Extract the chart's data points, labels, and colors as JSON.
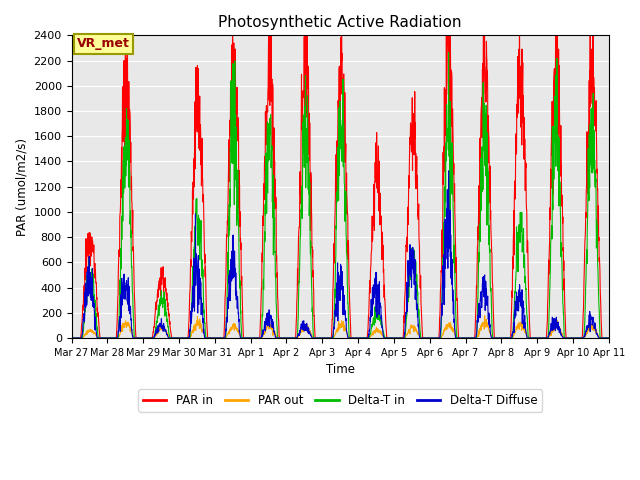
{
  "title": "Photosynthetic Active Radiation",
  "ylabel": "PAR (umol/m2/s)",
  "xlabel": "Time",
  "ylim": [
    0,
    2400
  ],
  "bg_color": "#e8e8e8",
  "legend_labels": [
    "PAR in",
    "PAR out",
    "Delta-T in",
    "Delta-T Diffuse"
  ],
  "legend_colors": [
    "#ff0000",
    "#ffa500",
    "#00bb00",
    "#0000cc"
  ],
  "annotation_text": "VR_met",
  "annotation_bg": "#ffff99",
  "annotation_border": "#999900",
  "annotation_text_color": "#990000",
  "tick_labels": [
    "Mar 27",
    "Mar 28",
    "Mar 29",
    "Mar 30",
    "Mar 31",
    "Apr 1",
    "Apr 2",
    "Apr 3",
    "Apr 4",
    "Apr 5",
    "Apr 6",
    "Apr 7",
    "Apr 8",
    "Apr 9",
    "Apr 10",
    "Apr 11"
  ],
  "num_days": 15,
  "grid_color": "#ffffff",
  "line_width": 0.8
}
